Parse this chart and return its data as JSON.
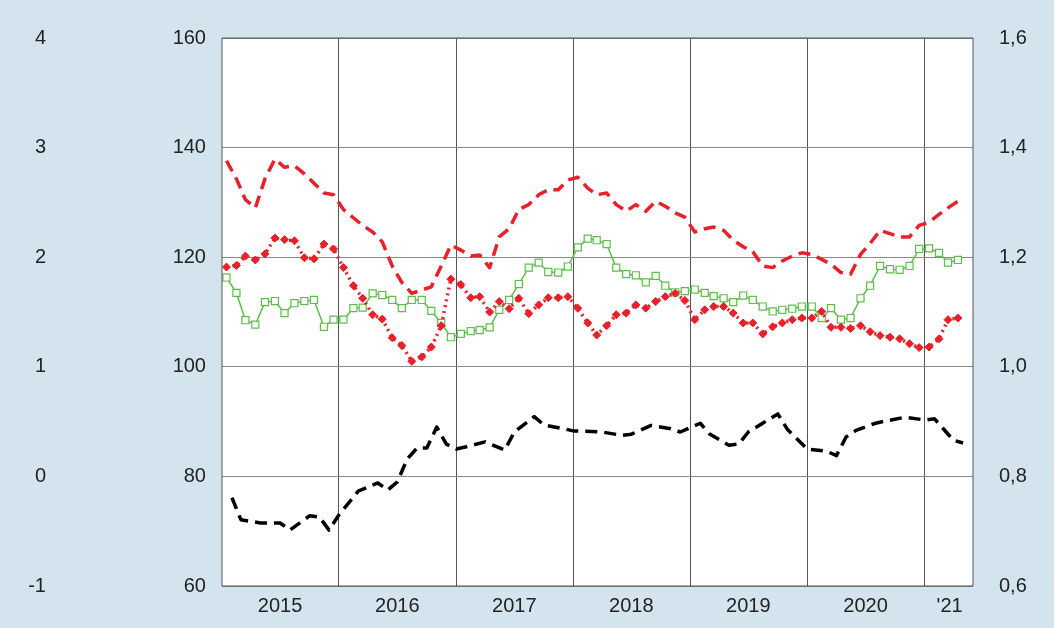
{
  "chart_data": {
    "type": "line",
    "x": [
      "2015-01-15",
      "2015-02-15",
      "2015-03-15",
      "2015-04-15",
      "2015-05-15",
      "2015-06-15",
      "2015-07-15",
      "2015-08-15",
      "2015-09-15",
      "2015-10-15",
      "2015-11-15",
      "2015-12-15",
      "2016-01-15",
      "2016-02-15",
      "2016-03-15",
      "2016-04-15",
      "2016-05-15",
      "2016-06-15",
      "2016-07-15",
      "2016-08-15",
      "2016-09-15",
      "2016-10-15",
      "2016-11-15",
      "2016-12-15",
      "2017-01-15",
      "2017-02-15",
      "2017-03-15",
      "2017-04-15",
      "2017-05-15",
      "2017-06-15",
      "2017-07-15",
      "2017-08-15",
      "2017-09-15",
      "2017-10-15",
      "2017-11-15",
      "2017-12-15",
      "2018-01-15",
      "2018-02-15",
      "2018-03-15",
      "2018-04-15",
      "2018-05-15",
      "2018-06-15",
      "2018-07-15",
      "2018-08-15",
      "2018-09-15",
      "2018-10-15",
      "2018-11-15",
      "2018-12-15",
      "2019-01-15",
      "2019-02-15",
      "2019-03-15",
      "2019-04-15",
      "2019-05-15",
      "2019-06-15",
      "2019-07-15",
      "2019-08-15",
      "2019-09-15",
      "2019-10-15",
      "2019-11-15",
      "2019-12-15",
      "2020-01-15",
      "2020-02-15",
      "2020-03-15",
      "2020-04-15",
      "2020-05-15",
      "2020-06-15",
      "2020-07-15",
      "2020-08-15",
      "2020-09-15",
      "2020-10-15",
      "2020-11-15",
      "2020-12-15",
      "2021-01-15",
      "2021-02-15",
      "2021-03-15",
      "2021-04-15"
    ],
    "series": [
      {
        "color": "#e8202a",
        "line_style": "dashed",
        "marker": "none",
        "values": [
          137.6,
          134.3,
          130.5,
          129.0,
          134.3,
          137.9,
          136.4,
          136.7,
          135.2,
          133.5,
          131.7,
          131.4,
          128.7,
          127.2,
          125.8,
          124.6,
          122.8,
          118.4,
          115.4,
          113.4,
          114.0,
          114.6,
          118.4,
          122.2,
          121.3,
          120.2,
          120.4,
          118.1,
          123.7,
          125.2,
          128.7,
          129.6,
          131.4,
          132.3,
          132.3,
          134.1,
          134.6,
          132.6,
          131.4,
          131.7,
          129.6,
          128.4,
          129.6,
          128.4,
          130.2,
          129.3,
          128.1,
          127.3,
          124.6,
          125.2,
          125.5,
          124.9,
          123.1,
          121.9,
          121.0,
          118.4,
          118.1,
          119.3,
          120.2,
          120.8,
          120.5,
          119.6,
          118.7,
          117.2,
          116.9,
          120.5,
          122.5,
          124.9,
          124.3,
          123.7,
          123.7,
          125.8,
          126.4,
          127.8,
          129.0,
          130.2
        ]
      },
      {
        "color": "#e8202a",
        "line_style": "dotted",
        "marker": "diamond",
        "values": [
          118.2,
          118.5,
          120.2,
          119.5,
          120.6,
          123.5,
          123.2,
          123.0,
          119.9,
          119.7,
          122.4,
          121.5,
          118.1,
          114.8,
          112.5,
          109.5,
          108.7,
          105.3,
          103.9,
          101.0,
          101.8,
          103.6,
          107.5,
          116.0,
          115.0,
          112.6,
          112.8,
          110.0,
          111.9,
          110.6,
          112.5,
          109.7,
          111.3,
          112.6,
          112.6,
          112.8,
          110.7,
          108.0,
          105.8,
          107.5,
          109.5,
          109.8,
          111.3,
          110.7,
          111.9,
          112.8,
          113.4,
          112.1,
          108.6,
          110.4,
          111.0,
          111.0,
          109.8,
          108.0,
          108.0,
          106.0,
          107.3,
          108.0,
          108.6,
          108.9,
          108.9,
          110.1,
          107.2,
          107.2,
          107.0,
          107.5,
          106.4,
          105.7,
          105.4,
          105.1,
          104.2,
          103.5,
          103.6,
          105.1,
          108.6,
          108.9
        ]
      },
      {
        "color": "#5cbf4a",
        "line_style": "solid",
        "marker": "square",
        "values": [
          116.3,
          113.5,
          108.5,
          107.7,
          111.8,
          112.0,
          109.8,
          111.6,
          112.0,
          112.2,
          107.3,
          108.6,
          108.6,
          110.7,
          110.8,
          113.4,
          113.1,
          112.2,
          110.7,
          112.2,
          112.2,
          110.2,
          108.0,
          105.4,
          106.0,
          106.5,
          106.7,
          107.2,
          110.4,
          112.2,
          115.1,
          118.1,
          119.0,
          117.3,
          117.2,
          118.3,
          121.8,
          123.4,
          123.1,
          122.4,
          118.1,
          116.9,
          116.7,
          115.4,
          116.6,
          114.8,
          113.6,
          113.8,
          114.1,
          113.5,
          112.9,
          112.5,
          111.8,
          113.0,
          112.2,
          111.0,
          110.1,
          110.4,
          110.6,
          111.0,
          111.0,
          108.9,
          110.7,
          108.6,
          108.9,
          112.5,
          114.8,
          118.4,
          117.8,
          117.7,
          118.4,
          121.5,
          121.6,
          120.8,
          119.0,
          119.5
        ]
      },
      {
        "color": "#000000",
        "line_style": "dashed",
        "marker": "none",
        "x": [
          "2015-02",
          "2015-03",
          "2015-05",
          "2015-07",
          "2015-08",
          "2015-10",
          "2015-11",
          "2015-12",
          "2016-01",
          "2016-03",
          "2016-05",
          "2016-06",
          "2016-07",
          "2016-08",
          "2016-09",
          "2016-10",
          "2016-11",
          "2016-12",
          "2017-01",
          "2017-02",
          "2017-04",
          "2017-06",
          "2017-07",
          "2017-09",
          "2017-10",
          "2017-12",
          "2018-01",
          "2018-04",
          "2018-06",
          "2018-07",
          "2018-09",
          "2018-11",
          "2018-12",
          "2019-02",
          "2019-03",
          "2019-05",
          "2019-06",
          "2019-07",
          "2019-10",
          "2019-11",
          "2020-01",
          "2020-03",
          "2020-04",
          "2020-05",
          "2020-06",
          "2020-08",
          "2020-09",
          "2020-11",
          "2021-01",
          "2021-02",
          "2021-04",
          "2021-05"
        ],
        "values": [
          76.1,
          72.1,
          71.5,
          71.5,
          70.2,
          72.8,
          72.6,
          70.2,
          73.0,
          77.3,
          78.8,
          77.5,
          79,
          83.2,
          85.2,
          85.2,
          89,
          85.9,
          85,
          85.4,
          86.3,
          84.8,
          88.1,
          90.9,
          89.4,
          88.7,
          88.3,
          88.1,
          87.5,
          87.7,
          89.3,
          88.7,
          88.1,
          89.7,
          87.8,
          85.7,
          85.9,
          88.1,
          91.4,
          88.5,
          85,
          84.6,
          83.8,
          87.2,
          88.4,
          89.7,
          90.1,
          90.8,
          90.3,
          90.5,
          86.6,
          86.1
        ]
      }
    ],
    "xlim": [
      "2015-01-01",
      "2021-06-01"
    ],
    "xticks": [
      {
        "value": "2015-07-01",
        "label": "2015"
      },
      {
        "value": "2016-01-01",
        "label": null
      },
      {
        "value": "2016-07-01",
        "label": "2016"
      },
      {
        "value": "2017-01-01",
        "label": null
      },
      {
        "value": "2017-07-01",
        "label": "2017"
      },
      {
        "value": "2018-01-01",
        "label": null
      },
      {
        "value": "2018-07-01",
        "label": "2018"
      },
      {
        "value": "2019-01-01",
        "label": null
      },
      {
        "value": "2019-07-01",
        "label": "2019"
      },
      {
        "value": "2020-01-01",
        "label": null
      },
      {
        "value": "2020-07-01",
        "label": "2020"
      },
      {
        "value": "2021-01-01",
        "label": null
      },
      {
        "value": "2021-03-20",
        "label": "'21"
      }
    ],
    "ylim": [
      60,
      160
    ],
    "yticks": [
      60,
      80,
      100,
      120,
      140,
      160
    ],
    "y2lim": [
      0.6,
      1.6
    ],
    "y2ticks": [
      {
        "value": 0.6,
        "label": "0,6"
      },
      {
        "value": 0.8,
        "label": "0,8"
      },
      {
        "value": 1.0,
        "label": "1,0"
      },
      {
        "value": 1.2,
        "label": "1,2"
      },
      {
        "value": 1.4,
        "label": "1,4"
      },
      {
        "value": 1.6,
        "label": "1,6"
      }
    ],
    "y3lim": [
      -1,
      4
    ],
    "y3ticks": [
      -1,
      0,
      1,
      2,
      3,
      4
    ],
    "grid": true,
    "legend": false
  }
}
